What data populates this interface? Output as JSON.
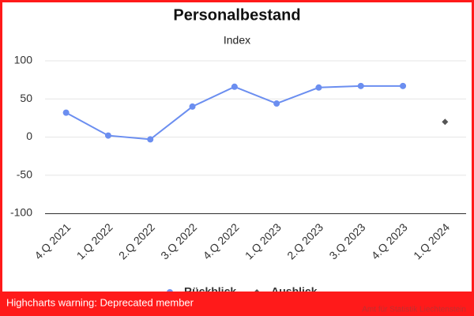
{
  "chart_data": {
    "type": "line",
    "title": "Personalbestand",
    "subtitle": "Index",
    "categories": [
      "4.Q 2021",
      "1.Q 2022",
      "2.Q 2022",
      "3.Q 2022",
      "4.Q 2022",
      "1.Q 2023",
      "2.Q 2023",
      "3.Q 2023",
      "4.Q 2023",
      "1.Q 2024"
    ],
    "series": [
      {
        "name": "Rückblick",
        "color": "#6b8ef0",
        "marker": "circle",
        "values": [
          32,
          2,
          -3,
          40,
          66,
          44,
          65,
          67,
          67,
          null
        ]
      },
      {
        "name": "Ausblick",
        "color": "#555555",
        "marker": "diamond",
        "values": [
          null,
          null,
          null,
          null,
          null,
          null,
          null,
          null,
          null,
          20
        ]
      }
    ],
    "ylim": [
      -100,
      100
    ],
    "yticks": [
      -100,
      -50,
      0,
      50,
      100
    ],
    "grid": true,
    "legend": "bottom",
    "credits": "Amt für Statistik Liechtenstein",
    "warning": "Highcharts warning: Deprecated member"
  }
}
